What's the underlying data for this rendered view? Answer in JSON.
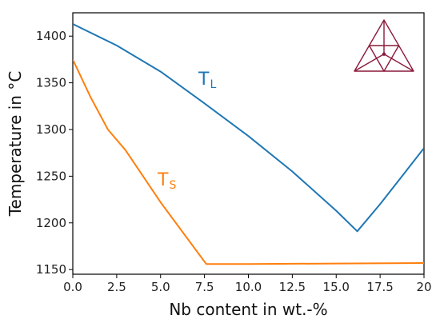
{
  "chart_data": {
    "type": "line",
    "title": "",
    "xlabel": "Nb content in wt.-%",
    "ylabel": "Temperature in °C",
    "xlim": [
      0,
      20
    ],
    "ylim": [
      1145,
      1425
    ],
    "xticks": [
      0,
      2.5,
      5,
      7.5,
      10,
      12.5,
      15,
      17.5,
      20
    ],
    "xtick_labels": [
      "0.0",
      "2.5",
      "5.0",
      "7.5",
      "10.0",
      "12.5",
      "15.0",
      "17.5",
      "20"
    ],
    "yticks": [
      1150,
      1200,
      1250,
      1300,
      1350,
      1400
    ],
    "ytick_labels": [
      "1150",
      "1200",
      "1250",
      "1300",
      "1350",
      "1400"
    ],
    "grid": false,
    "legend": "none",
    "series": [
      {
        "name": "T_L",
        "label_main": "T",
        "label_sub": "L",
        "color": "#1f77b4",
        "x": [
          0,
          2.5,
          5,
          7.5,
          10,
          12.5,
          15,
          16.2,
          17.5,
          20
        ],
        "y": [
          1413,
          1390,
          1362,
          1328,
          1293,
          1255,
          1213,
          1191,
          1220,
          1280
        ]
      },
      {
        "name": "T_S",
        "label_main": "T",
        "label_sub": "S",
        "color": "#ff7f0e",
        "x": [
          0,
          1,
          2,
          3,
          5,
          7.6,
          10,
          15,
          20
        ],
        "y": [
          1375,
          1335,
          1300,
          1278,
          1222,
          1156,
          1156,
          1156.5,
          1157
        ]
      }
    ]
  },
  "logo": {
    "name": "triangle-logo",
    "color": "#8b1a3a"
  }
}
